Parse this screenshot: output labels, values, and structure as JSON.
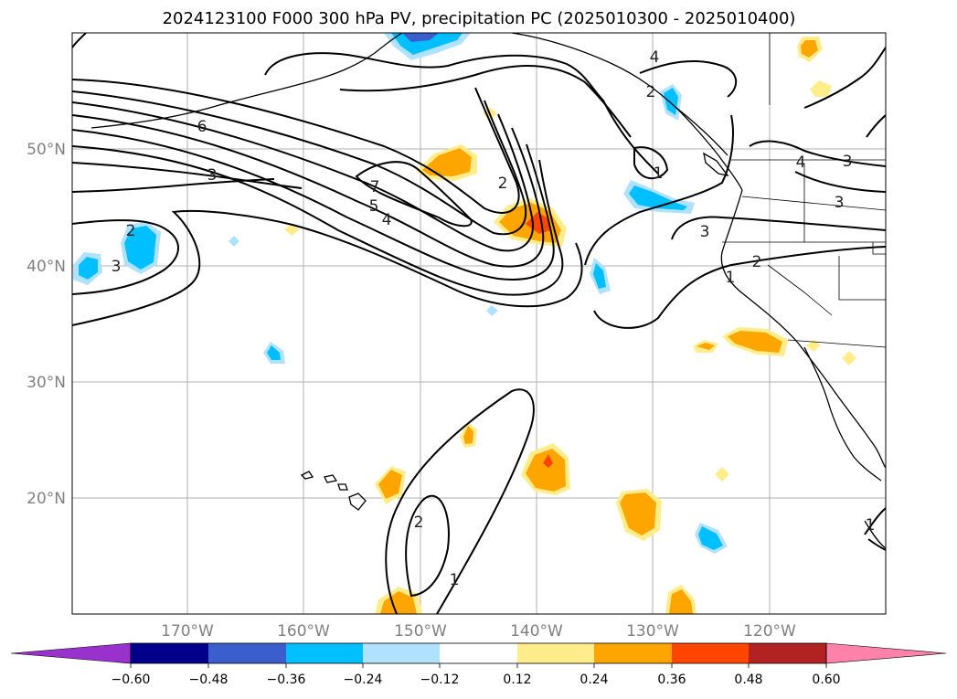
{
  "title": "2024123100 F000 300 hPa PV, precipitation PC (2025010300 - 2025010400)",
  "map": {
    "lat_labels": [
      "50°N",
      "40°N",
      "30°N",
      "20°N"
    ],
    "lon_labels": [
      "170°W",
      "160°W",
      "150°W",
      "140°W",
      "130°W",
      "120°W"
    ],
    "contour_labels": [
      "6",
      "3",
      "7",
      "5",
      "4",
      "2",
      "2",
      "2",
      "3",
      "1",
      "4",
      "4",
      "3",
      "3",
      "3",
      "2",
      "1",
      "2",
      "1",
      "1"
    ]
  },
  "colorbar": {
    "ticks": [
      "−0.60",
      "−0.48",
      "−0.36",
      "−0.24",
      "−0.12",
      "0.12",
      "0.24",
      "0.36",
      "0.48",
      "0.60"
    ],
    "colors": {
      "under": "#9932cc",
      "b1": "#00008b",
      "b2": "#3a5fcd",
      "b3": "#00bfff",
      "b4": "#b0e2ff",
      "b5": "#ffffff",
      "b6": "#ffec8b",
      "b7": "#ffa500",
      "b8": "#ff4500",
      "b9": "#b22222",
      "over": "#ff82ab"
    }
  },
  "colors": {
    "pos_light": "#ffec8b",
    "pos_mid": "#ffa500",
    "pos_strong": "#ff4500",
    "neg_light": "#b0e2ff",
    "neg_mid": "#00bfff",
    "neg_strong": "#3a5fcd",
    "grid": "#b0b0b0",
    "contour": "#000000"
  }
}
